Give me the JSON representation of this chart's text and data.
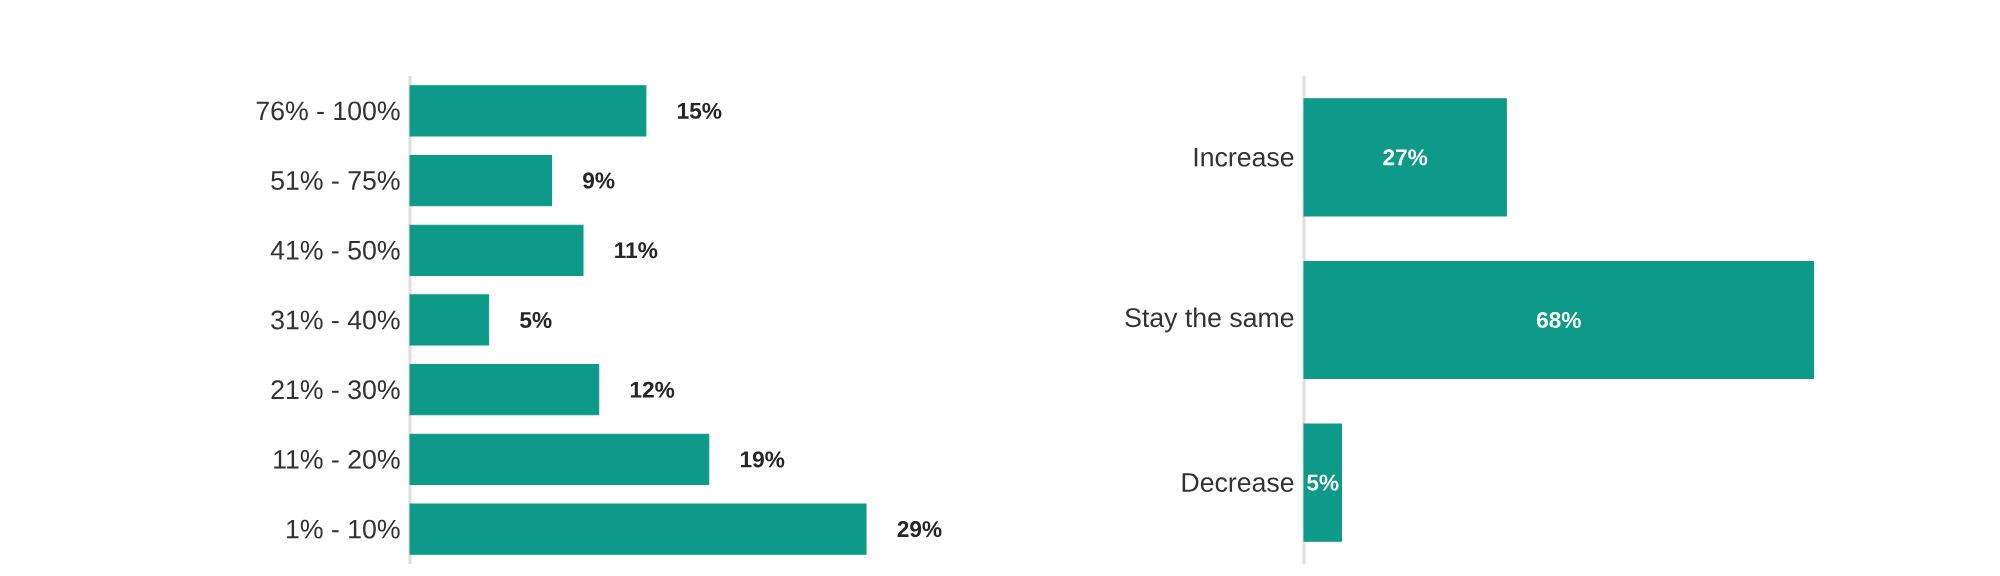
{
  "chart_data": [
    {
      "type": "bar",
      "orientation": "horizontal",
      "categories": [
        "76% - 100%",
        "51% - 75%",
        "41% - 50%",
        "31% - 40%",
        "21% - 30%",
        "11% - 20%",
        "1% - 10%"
      ],
      "values": [
        15,
        9,
        11,
        5,
        12,
        19,
        29
      ],
      "value_labels": [
        "15%",
        "9%",
        "11%",
        "5%",
        "12%",
        "19%",
        "29%"
      ],
      "color": "#0e9a88",
      "tick_labels": "y"
    },
    {
      "type": "bar",
      "orientation": "horizontal",
      "categories": [
        "Increase",
        "Stay the same",
        "Decrease"
      ],
      "values": [
        27,
        68,
        5
      ],
      "value_labels": [
        "27%",
        "68%",
        "5%"
      ],
      "color": "#0e9a88",
      "tick_labels": "y"
    }
  ]
}
